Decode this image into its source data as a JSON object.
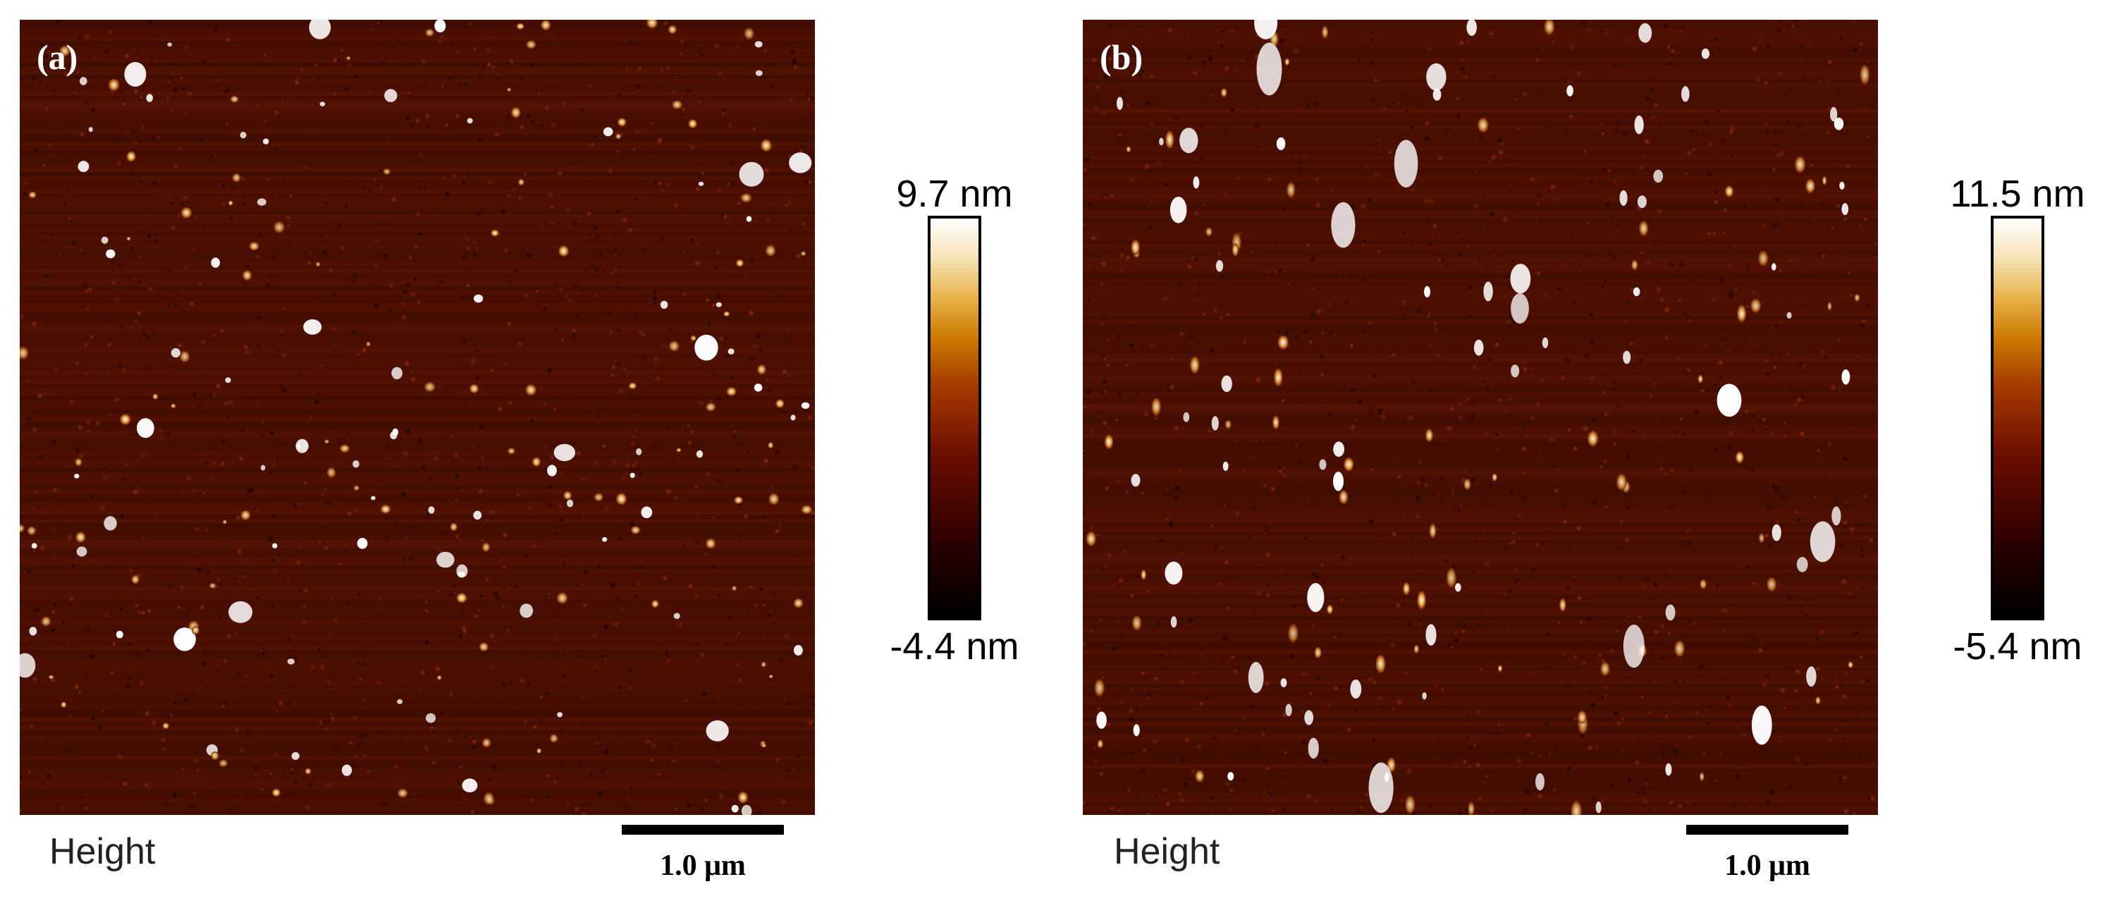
{
  "panels": [
    {
      "letter": "(a)",
      "channel_label": "Height",
      "scale_bar_label": "1.0 μm",
      "colorbar_max": "9.7 nm",
      "colorbar_min": "-4.4 nm"
    },
    {
      "letter": "(b)",
      "channel_label": "Height",
      "scale_bar_label": "1.0 μm",
      "colorbar_max": "11.5 nm",
      "colorbar_min": "-5.4 nm"
    }
  ],
  "colors": {
    "background_dark": "#3a0a00",
    "background_mid": "#6b1a05",
    "particle_bright": "#ffffff",
    "particle_mid": "#e0a040"
  }
}
